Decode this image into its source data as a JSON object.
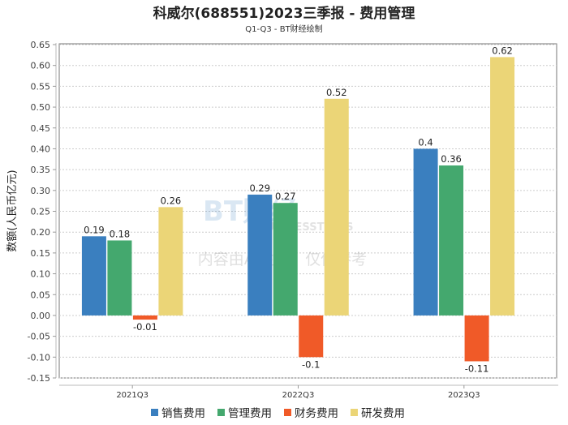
{
  "chart_data": {
    "type": "bar",
    "title": "科威尔(688551)2023三季报 - 费用管理",
    "subtitle": "Q1-Q3 - BT财经绘制",
    "xlabel": "",
    "ylabel": "数额(人民币亿元)",
    "ylim": [
      -0.15,
      0.65
    ],
    "ytick_step": 0.05,
    "yticks": [
      "-0.15",
      "-0.10",
      "-0.05",
      "0.00",
      "0.05",
      "0.10",
      "0.15",
      "0.20",
      "0.25",
      "0.30",
      "0.35",
      "0.40",
      "0.45",
      "0.50",
      "0.55",
      "0.60",
      "0.65"
    ],
    "grid": true,
    "legend_position": "bottom",
    "categories": [
      "2021Q3",
      "2022Q3",
      "2023Q3"
    ],
    "series": [
      {
        "name": "销售费用",
        "color": "#3a7fbf",
        "values": [
          0.19,
          0.29,
          0.4
        ]
      },
      {
        "name": "管理费用",
        "color": "#44a86e",
        "values": [
          0.18,
          0.27,
          0.36
        ]
      },
      {
        "name": "财务费用",
        "color": "#f05a28",
        "values": [
          -0.01,
          -0.1,
          -0.11
        ]
      },
      {
        "name": "研发费用",
        "color": "#ebd577",
        "values": [
          0.26,
          0.52,
          0.62
        ]
      }
    ]
  },
  "watermark": {
    "logo": "BT财经",
    "logo_sub": "BUSINESSTIMES",
    "notice": "内容由AI生成，仅供参考"
  }
}
